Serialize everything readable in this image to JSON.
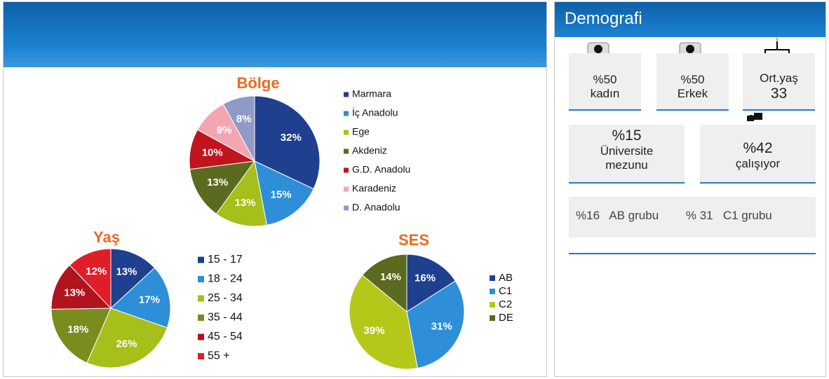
{
  "chart_data": [
    {
      "type": "pie",
      "title": "Bölge",
      "categories": [
        "Marmara",
        "İç Anadolu",
        "Ege",
        "Akdeniz",
        "G.D. Anadolu",
        "Karadeniz",
        "D. Anadolu"
      ],
      "values": [
        32,
        15,
        13,
        13,
        10,
        9,
        8
      ],
      "value_labels": [
        "32%",
        "15%",
        "13%",
        "13%",
        "10%",
        "9%",
        "8%"
      ],
      "colors": [
        "#1f3f8f",
        "#2e8fd8",
        "#a6bf1a",
        "#5a6a1e",
        "#c0141e",
        "#f4a6b0",
        "#8f9ac8"
      ]
    },
    {
      "type": "pie",
      "title": "Yaş",
      "categories": [
        "15 - 17",
        "18 - 24",
        "25 - 34",
        "35 - 44",
        "45 - 54",
        "55 +"
      ],
      "values": [
        13,
        17,
        26,
        18,
        13,
        12
      ],
      "value_labels": [
        "13%",
        "17%",
        "26%",
        "18%",
        "13%",
        "12%"
      ],
      "colors": [
        "#1f3f8f",
        "#2e8fd8",
        "#a6bf1a",
        "#7a8c1e",
        "#b0141e",
        "#e01e2a"
      ]
    },
    {
      "type": "pie",
      "title": "SES",
      "categories": [
        "AB",
        "C1",
        "C2",
        "DE"
      ],
      "values": [
        16,
        31,
        39,
        14
      ],
      "value_labels": [
        "16%",
        "31%",
        "39%",
        "14%"
      ],
      "colors": [
        "#1f3f8f",
        "#2e8fd8",
        "#b5c81a",
        "#5a6a1e"
      ]
    }
  ],
  "panel": {
    "title": "Demografi",
    "cards": [
      {
        "value": "%50",
        "label": "kadın"
      },
      {
        "value": "%50",
        "label": "Erkek"
      },
      {
        "label": "Ort.yaş",
        "value": "33"
      },
      {
        "value": "%15",
        "label": "Üniversite",
        "label2": "mezunu"
      },
      {
        "value": "%42",
        "label": "çalışıyor"
      }
    ],
    "ses_summary": [
      {
        "value": "%16",
        "label": "AB grubu"
      },
      {
        "value": "% 31",
        "label": "C1 grubu"
      }
    ]
  }
}
